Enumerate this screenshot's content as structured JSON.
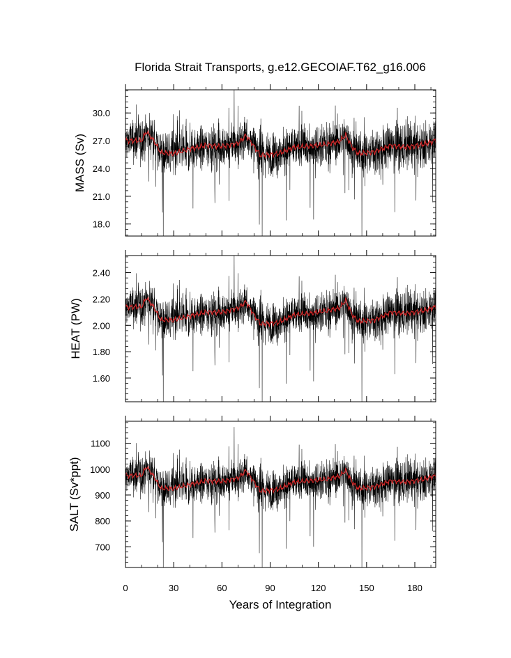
{
  "chart_data": {
    "type": "line",
    "title": "Florida Strait Transports, g.e12.GECOIAF.T62_g16.006",
    "xlabel": "Years of Integration",
    "xlim": [
      0,
      193
    ],
    "x_ticks": [
      "0",
      "30",
      "60",
      "90",
      "120",
      "150",
      "180"
    ],
    "colors": {
      "raw": "#000000",
      "smoothed": "#d62728"
    },
    "grid": false,
    "panels": [
      {
        "ylabel": "MASS (Sv)",
        "ylim": [
          16.7,
          32.5
        ],
        "y_ticks": [
          "18.0",
          "21.0",
          "24.0",
          "27.0",
          "30.0"
        ],
        "smoothed": [
          [
            0,
            27.0
          ],
          [
            10,
            27.0
          ],
          [
            13,
            28.0
          ],
          [
            18,
            26.9
          ],
          [
            22,
            25.7
          ],
          [
            30,
            25.6
          ],
          [
            40,
            26.1
          ],
          [
            50,
            26.5
          ],
          [
            60,
            26.4
          ],
          [
            70,
            26.7
          ],
          [
            75,
            27.6
          ],
          [
            80,
            26.4
          ],
          [
            84,
            25.4
          ],
          [
            95,
            25.6
          ],
          [
            105,
            26.3
          ],
          [
            115,
            26.4
          ],
          [
            125,
            26.6
          ],
          [
            133,
            26.9
          ],
          [
            137,
            27.6
          ],
          [
            141,
            26.3
          ],
          [
            145,
            25.6
          ],
          [
            155,
            25.8
          ],
          [
            165,
            26.5
          ],
          [
            175,
            26.3
          ],
          [
            185,
            26.6
          ],
          [
            193,
            27.0
          ]
        ]
      },
      {
        "ylabel": "HEAT (PW)",
        "ylim": [
          1.42,
          2.53
        ],
        "y_ticks": [
          "1.60",
          "1.80",
          "2.00",
          "2.20",
          "2.40"
        ],
        "smoothed": [
          [
            0,
            2.14
          ],
          [
            10,
            2.14
          ],
          [
            13,
            2.21
          ],
          [
            18,
            2.13
          ],
          [
            22,
            2.04
          ],
          [
            30,
            2.04
          ],
          [
            40,
            2.07
          ],
          [
            50,
            2.1
          ],
          [
            60,
            2.1
          ],
          [
            70,
            2.13
          ],
          [
            75,
            2.18
          ],
          [
            80,
            2.08
          ],
          [
            84,
            2.01
          ],
          [
            95,
            2.02
          ],
          [
            105,
            2.08
          ],
          [
            115,
            2.09
          ],
          [
            125,
            2.11
          ],
          [
            133,
            2.13
          ],
          [
            137,
            2.19
          ],
          [
            141,
            2.08
          ],
          [
            145,
            2.03
          ],
          [
            155,
            2.04
          ],
          [
            165,
            2.1
          ],
          [
            175,
            2.09
          ],
          [
            185,
            2.11
          ],
          [
            193,
            2.14
          ]
        ]
      },
      {
        "ylabel": "SALT (Sv*ppt)",
        "ylim": [
          620,
          1185
        ],
        "y_ticks": [
          "700",
          "800",
          "900",
          "1000",
          "1100"
        ],
        "smoothed": [
          [
            0,
            975
          ],
          [
            10,
            975
          ],
          [
            13,
            1010
          ],
          [
            18,
            968
          ],
          [
            22,
            925
          ],
          [
            30,
            925
          ],
          [
            40,
            940
          ],
          [
            50,
            955
          ],
          [
            60,
            953
          ],
          [
            70,
            965
          ],
          [
            75,
            995
          ],
          [
            80,
            950
          ],
          [
            84,
            915
          ],
          [
            95,
            922
          ],
          [
            105,
            950
          ],
          [
            115,
            955
          ],
          [
            125,
            960
          ],
          [
            133,
            972
          ],
          [
            137,
            995
          ],
          [
            141,
            950
          ],
          [
            145,
            925
          ],
          [
            155,
            932
          ],
          [
            165,
            955
          ],
          [
            175,
            950
          ],
          [
            185,
            960
          ],
          [
            193,
            975
          ]
        ]
      }
    ]
  }
}
